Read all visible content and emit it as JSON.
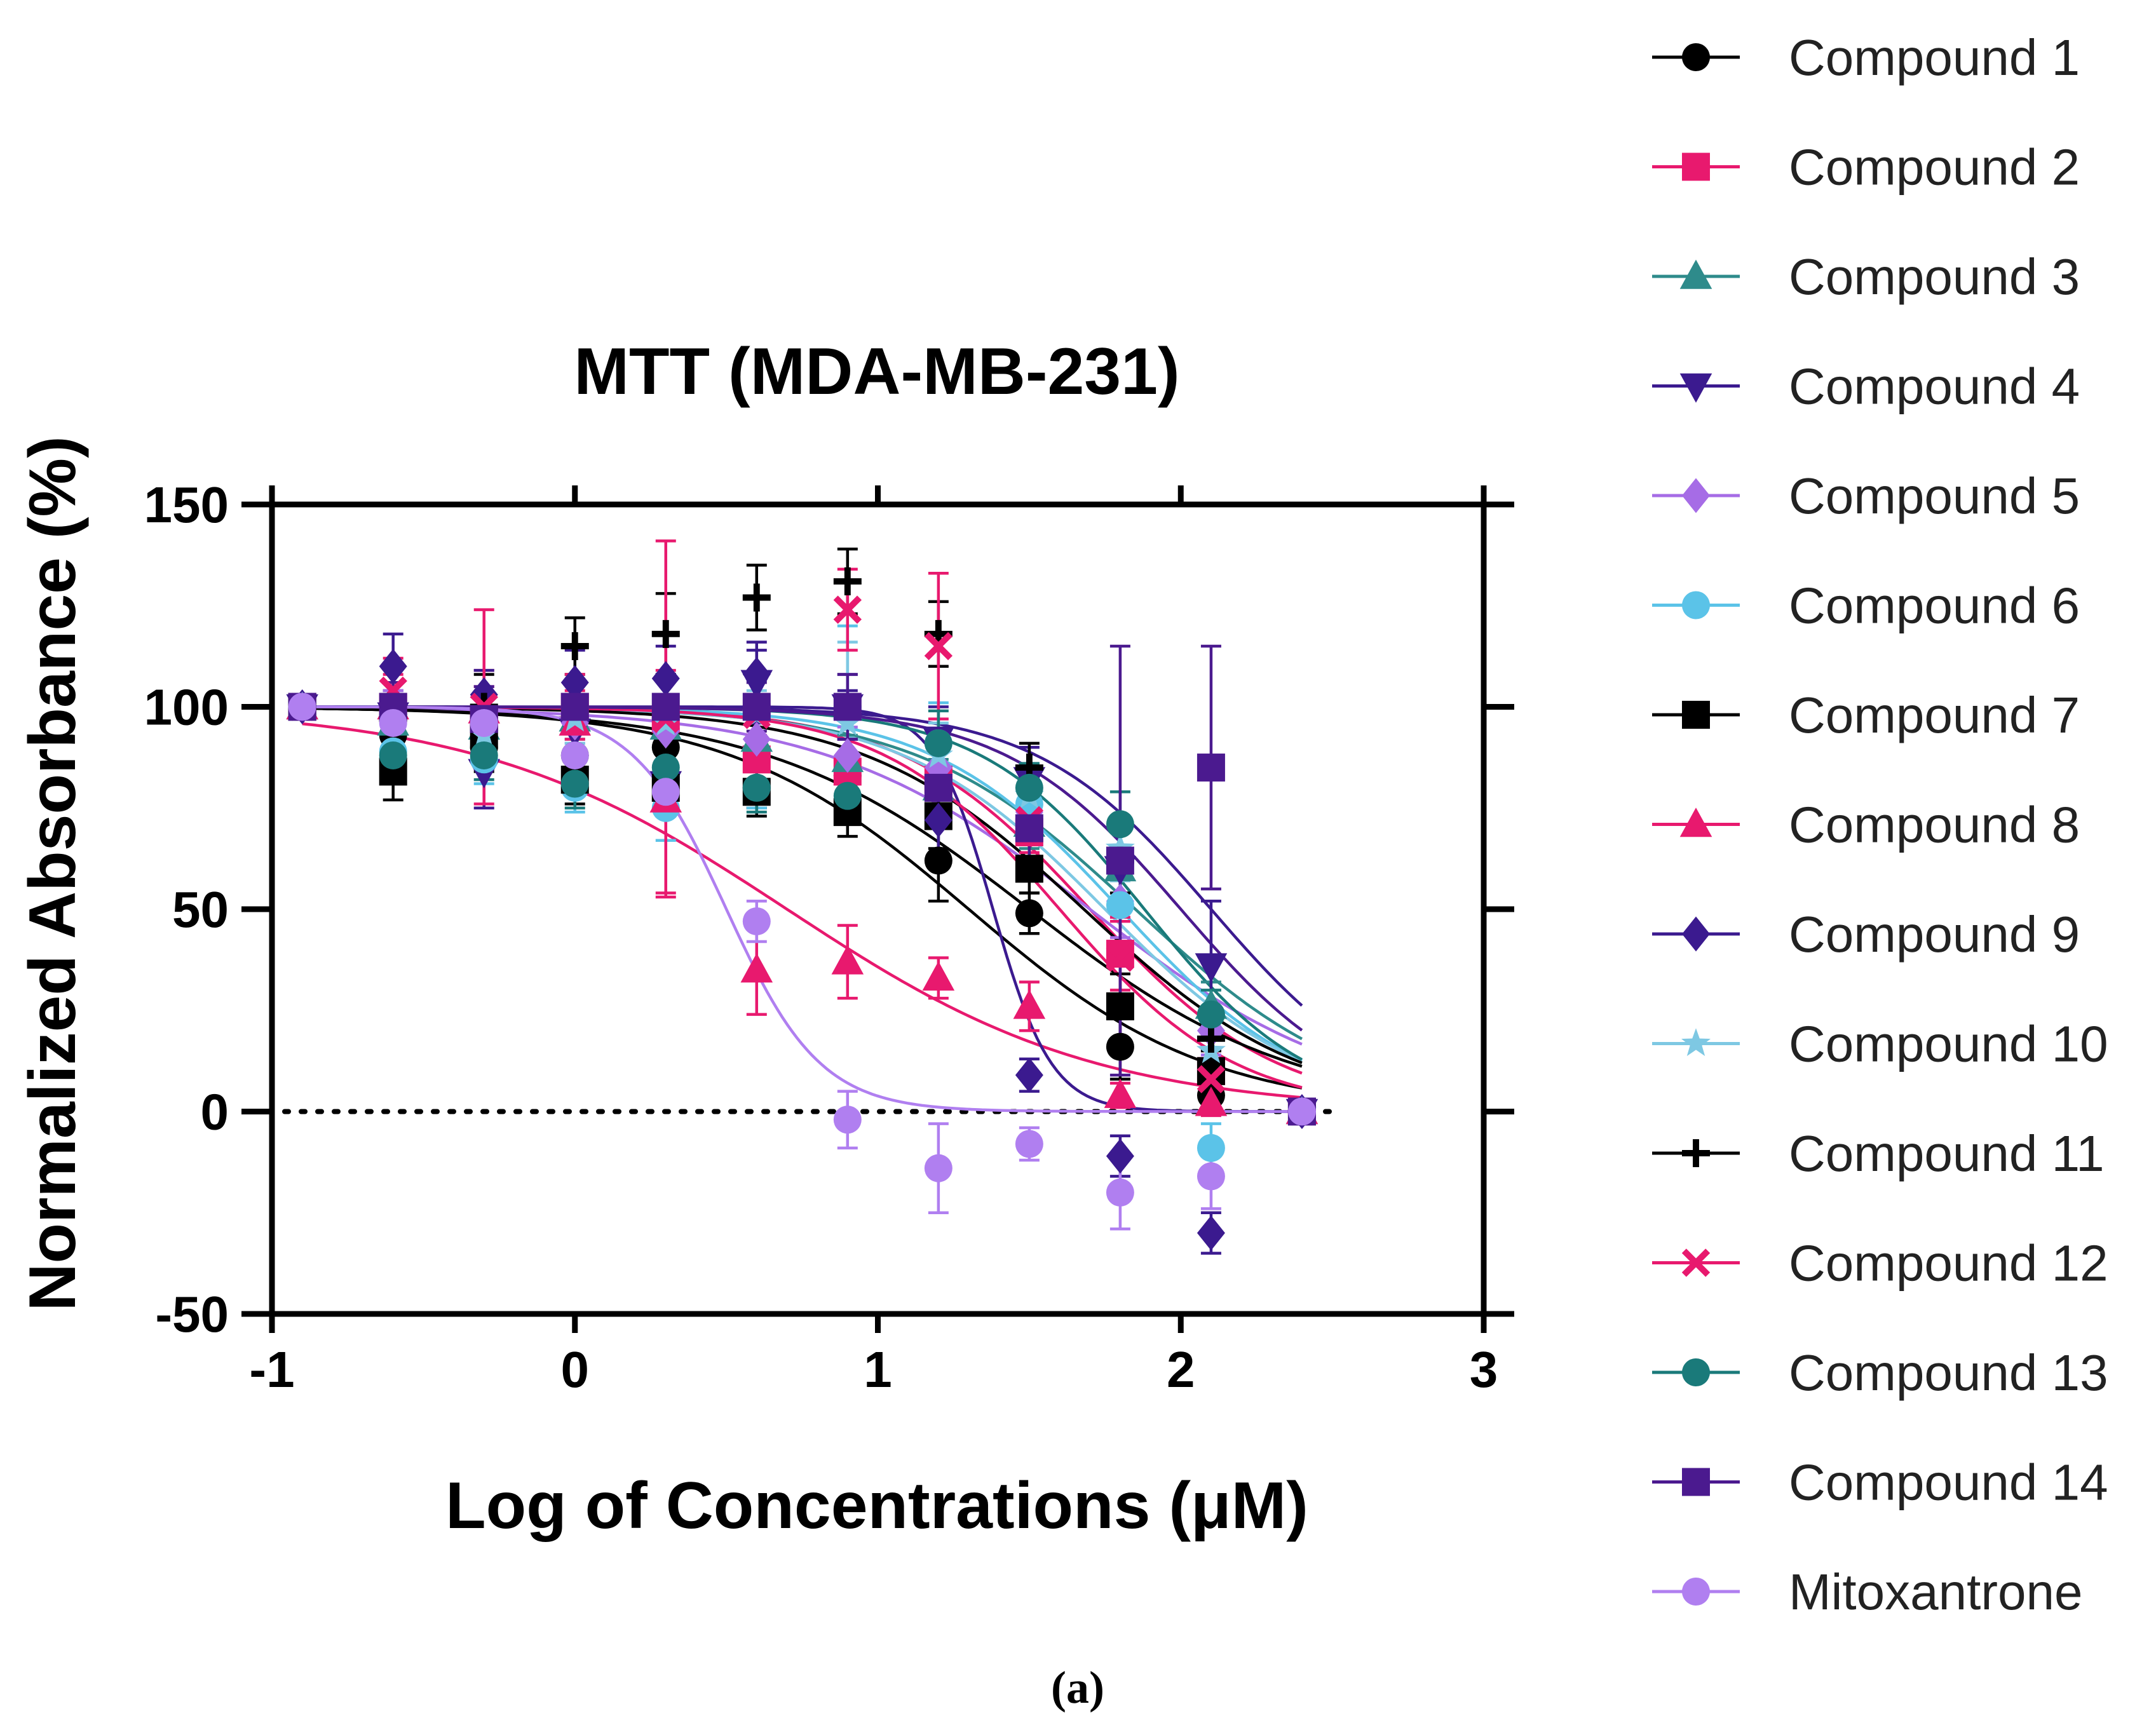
{
  "chart_data": {
    "type": "line",
    "title": "MTT (MDA-MB-231)",
    "xlabel": "Log of Concentrations (μM)",
    "ylabel": "Normalized Absorbance (%)",
    "xlim": [
      -1,
      3
    ],
    "ylim": [
      -50,
      150
    ],
    "xticks": [
      "-1",
      "0",
      "1",
      "2",
      "3"
    ],
    "yticks": [
      "150",
      "100",
      "50",
      "0",
      "-50"
    ],
    "reference_line": {
      "y": 0,
      "style": "dotted"
    },
    "legend_position": "right",
    "caption": "(a)",
    "x": [
      -0.9,
      -0.6,
      -0.3,
      0.0,
      0.3,
      0.6,
      0.9,
      1.2,
      1.5,
      1.8,
      2.1,
      2.4
    ],
    "series": [
      {
        "name": "Compound 1",
        "color": "#000000",
        "marker": "circle",
        "ic50": 1.3,
        "hill": 1.1,
        "values": [
          100,
          93,
          90,
          88,
          90,
          80,
          83,
          62,
          49,
          16,
          4,
          0
        ],
        "errors": [
          0,
          5,
          6,
          6,
          8,
          5,
          5,
          10,
          5,
          8,
          3,
          0
        ]
      },
      {
        "name": "Compound 2",
        "color": "#e8196e",
        "marker": "square",
        "ic50": 1.7,
        "hill": 1.4,
        "values": [
          100,
          100,
          97,
          100,
          97,
          87,
          84,
          82,
          69,
          39,
          10,
          0
        ],
        "errors": [
          0,
          6,
          8,
          6,
          12,
          6,
          8,
          8,
          6,
          9,
          5,
          0
        ]
      },
      {
        "name": "Compound 3",
        "color": "#2e8b8b",
        "marker": "triangle-up",
        "ic50": 1.85,
        "hill": 1.2,
        "values": [
          100,
          96,
          95,
          97,
          95,
          92,
          87,
          80,
          71,
          60,
          26,
          0
        ],
        "errors": [
          0,
          5,
          5,
          5,
          6,
          5,
          6,
          7,
          6,
          10,
          6,
          0
        ]
      },
      {
        "name": "Compound 4",
        "color": "#3b1a8f",
        "marker": "triangle-down",
        "ic50": 2.1,
        "hill": 1.5,
        "values": [
          100,
          98,
          84,
          94,
          81,
          106,
          100,
          92,
          82,
          60,
          36,
          0
        ],
        "errors": [
          0,
          6,
          9,
          8,
          8,
          10,
          8,
          8,
          8,
          10,
          16,
          0
        ]
      },
      {
        "name": "Compound 5",
        "color": "#a66ce6",
        "marker": "diamond",
        "ic50": 1.7,
        "hill": 1.0,
        "values": [
          100,
          99,
          97,
          96,
          94,
          92,
          88,
          85,
          74,
          52,
          20,
          0
        ],
        "errors": [
          0,
          5,
          5,
          5,
          6,
          6,
          7,
          7,
          8,
          9,
          6,
          0
        ]
      },
      {
        "name": "Compound 6",
        "color": "#5bc3e8",
        "marker": "circle",
        "ic50": 1.8,
        "hill": 1.4,
        "values": [
          100,
          89,
          87,
          80,
          75,
          80,
          100,
          91,
          76,
          51,
          -9,
          0
        ],
        "errors": [
          0,
          6,
          6,
          6,
          8,
          5,
          20,
          10,
          8,
          9,
          6,
          0
        ]
      },
      {
        "name": "Compound 7",
        "color": "#000000",
        "marker": "square",
        "ic50": 1.5,
        "hill": 1.0,
        "values": [
          100,
          84,
          93,
          82,
          80,
          79,
          74,
          73,
          60,
          26,
          10,
          0
        ],
        "errors": [
          0,
          7,
          6,
          6,
          7,
          6,
          6,
          8,
          6,
          8,
          5,
          0
        ]
      },
      {
        "name": "Compound 8",
        "color": "#e8196e",
        "marker": "triangle-up",
        "ic50": 0.7,
        "hill": 0.85,
        "values": [
          100,
          100,
          99,
          96,
          77,
          35,
          37,
          33,
          26,
          4,
          2,
          0
        ],
        "errors": [
          0,
          8,
          10,
          8,
          23,
          11,
          9,
          5,
          6,
          3,
          3,
          0
        ]
      },
      {
        "name": "Compound 9",
        "color": "#3b1a8f",
        "marker": "diamond",
        "ic50": 1.38,
        "hill": 4.5,
        "values": [
          100,
          110,
          103,
          106,
          107,
          108,
          98,
          72,
          9,
          -11,
          -30,
          0
        ],
        "errors": [
          0,
          8,
          6,
          8,
          8,
          6,
          6,
          8,
          4,
          5,
          5,
          0
        ]
      },
      {
        "name": "Compound 10",
        "color": "#7ec8e3",
        "marker": "star",
        "ic50": 1.75,
        "hill": 1.3,
        "values": [
          100,
          97,
          93,
          97,
          96,
          98,
          96,
          88,
          78,
          65,
          15,
          0
        ],
        "errors": [
          0,
          6,
          6,
          6,
          6,
          6,
          20,
          8,
          8,
          8,
          6,
          0
        ]
      },
      {
        "name": "Compound 11",
        "color": "#000000",
        "marker": "plus",
        "ic50": 1.68,
        "hill": 1.2,
        "values": [
          100,
          97,
          100,
          115,
          118,
          127,
          131,
          118,
          85,
          62,
          18,
          0
        ],
        "errors": [
          0,
          6,
          8,
          7,
          10,
          8,
          8,
          8,
          6,
          8,
          5,
          0
        ]
      },
      {
        "name": "Compound 12",
        "color": "#e8196e",
        "marker": "x",
        "ic50": 1.6,
        "hill": 1.5,
        "values": [
          100,
          104,
          100,
          100,
          97,
          98,
          124,
          115,
          72,
          38,
          8,
          0
        ],
        "errors": [
          0,
          8,
          24,
          8,
          44,
          10,
          10,
          18,
          8,
          9,
          5,
          0
        ]
      },
      {
        "name": "Compound 13",
        "color": "#1a7a7a",
        "marker": "circle",
        "ic50": 1.88,
        "hill": 1.6,
        "values": [
          100,
          88,
          88,
          81,
          85,
          80,
          78,
          91,
          80,
          71,
          24,
          0
        ],
        "errors": [
          0,
          6,
          6,
          6,
          6,
          6,
          6,
          8,
          6,
          8,
          6,
          0
        ]
      },
      {
        "name": "Compound 14",
        "color": "#4b1a8f",
        "marker": "square",
        "ic50": 2.0,
        "hill": 1.5,
        "values": [
          100,
          100,
          97,
          100,
          100,
          100,
          100,
          80,
          70,
          62,
          85,
          0
        ],
        "errors": [
          0,
          6,
          8,
          6,
          8,
          6,
          8,
          10,
          10,
          53,
          30,
          0
        ]
      },
      {
        "name": "Mitoxantrone",
        "color": "#b07ff0",
        "marker": "circle",
        "ic50": 0.5,
        "hill": 2.8,
        "values": [
          100,
          96,
          96,
          88,
          79,
          47,
          -2,
          -14,
          -8,
          -20,
          -16,
          0
        ],
        "errors": [
          0,
          6,
          6,
          6,
          6,
          5,
          7,
          11,
          4,
          9,
          8,
          0
        ]
      }
    ]
  }
}
